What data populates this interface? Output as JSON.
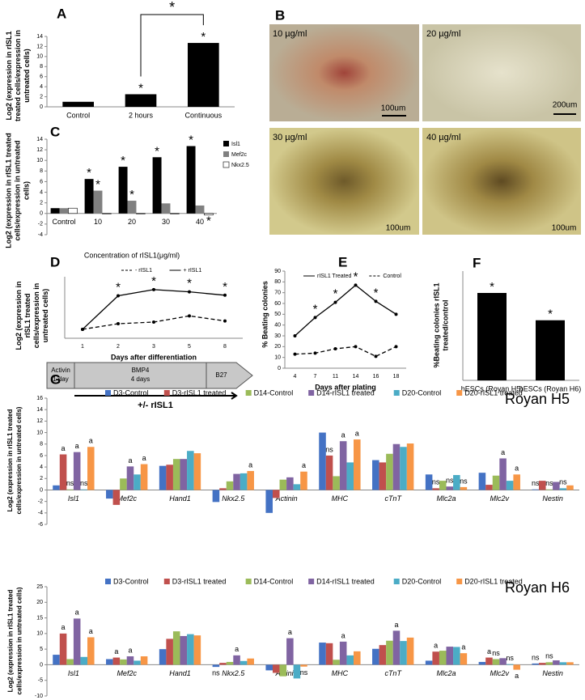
{
  "chart_data": [
    {
      "type": "bar",
      "panel": "A",
      "y_label": "Log2 (expression in rISL1 treated cells/expression in untreated cells)",
      "categories": [
        "Control",
        "2 hours",
        "Continuous"
      ],
      "values": [
        1,
        2.5,
        12.7
      ],
      "color": "#000000",
      "significance": [
        null,
        "*",
        "*"
      ],
      "bracket": {
        "between": [
          1,
          2
        ],
        "label": "*"
      },
      "ylim": [
        0,
        14
      ],
      "yticks": [
        0,
        2,
        4,
        6,
        8,
        10,
        12,
        14
      ]
    },
    {
      "type": "bar",
      "panel": "C",
      "y_label": "Log2 (expression in rISL1 treated cells/expression in untreated cells)",
      "x_label": "Concentration of rISL1(μg/ml)",
      "legend": "top-right",
      "categories": [
        "Control",
        "10",
        "20",
        "30",
        "40"
      ],
      "series": [
        {
          "name": "Isl1",
          "color": "#000000",
          "values": [
            1,
            6.5,
            8.8,
            10.6,
            12.7
          ],
          "significance": [
            null,
            "*",
            "*",
            "*",
            "*"
          ]
        },
        {
          "name": "Mef2c",
          "color": "#808080",
          "values": [
            1,
            4.3,
            2.4,
            1.9,
            1.5
          ],
          "significance": [
            null,
            "*",
            "*",
            null,
            null
          ]
        },
        {
          "name": "Nkx2.5",
          "color": "#ffffff",
          "values": [
            1,
            0,
            0,
            0,
            -0.3
          ],
          "significance": [
            null,
            null,
            null,
            null,
            "*"
          ]
        }
      ],
      "ylim": [
        -4,
        14
      ],
      "yticks": [
        -4,
        -2,
        0,
        2,
        4,
        6,
        8,
        10,
        12,
        14
      ]
    },
    {
      "type": "line",
      "panel": "D",
      "y_label": "Log2 (expression in rISL1 treated cells/expression in untreated cells)",
      "x_label": "Days after differentiation",
      "legend": "top",
      "categories": [
        "1",
        "2",
        "3",
        "5",
        "8"
      ],
      "series": [
        {
          "name": "- rISL1",
          "color": "#000000",
          "dash": true,
          "values": [
            1.6,
            2.6,
            2.9,
            4.0,
            3.1
          ],
          "significance": [
            null,
            null,
            null,
            null,
            null
          ]
        },
        {
          "name": "+ rISL1",
          "color": "#000000",
          "dash": false,
          "values": [
            1.6,
            7.6,
            8.7,
            8.3,
            7.7
          ],
          "significance": [
            null,
            "*",
            "*",
            "*",
            "*"
          ]
        }
      ],
      "ylim": [
        0,
        11
      ],
      "stages": [
        {
          "label": "Activin",
          "duration": "1 day"
        },
        {
          "label": "BMP4",
          "duration": "4 days"
        },
        {
          "label": "B27"
        }
      ],
      "arrow_label": "+/- rISL1"
    },
    {
      "type": "line",
      "panel": "E",
      "y_label": "% Beating colonies",
      "x_label": "Days after plating",
      "legend": "top",
      "categories": [
        "4",
        "7",
        "11",
        "14",
        "16",
        "18"
      ],
      "series": [
        {
          "name": "rISL1 Treated",
          "color": "#000000",
          "dash": false,
          "values": [
            30,
            47,
            61,
            77,
            62,
            50
          ],
          "significance": [
            null,
            "*",
            "*",
            "*",
            "*",
            null
          ]
        },
        {
          "name": "Control",
          "color": "#000000",
          "dash": true,
          "values": [
            13,
            14,
            18,
            20,
            11,
            20
          ],
          "significance": [
            null,
            null,
            null,
            null,
            null,
            null
          ]
        }
      ],
      "ylim": [
        0,
        90
      ],
      "yticks": [
        0,
        10,
        20,
        30,
        40,
        50,
        60,
        70,
        80,
        90
      ]
    },
    {
      "type": "bar",
      "panel": "F",
      "y_label": "%Beating colonies rISL1 treated/control",
      "categories": [
        "hESCs (Royan H5)",
        "hESCs (Royan H6)"
      ],
      "values": [
        3.2,
        2.2
      ],
      "color": "#000000",
      "significance": [
        "*",
        "*"
      ],
      "ylim": [
        0,
        4
      ]
    },
    {
      "type": "bar",
      "panel": "G",
      "title": "Royan H5",
      "category_style": "italic",
      "legend": "top",
      "y_label": "Log2 (expression in rISL1 treated cells/expression in untreated cells)",
      "categories": [
        "Isl1",
        "Mef2c",
        "Hand1",
        "Nkx2.5",
        "Actinin",
        "MHC",
        "cTnT",
        "Mlc2a",
        "Mlc2v",
        "Nestin"
      ],
      "series": [
        {
          "name": "D3-Control",
          "color": "#4472c4",
          "values": [
            0.8,
            -1.5,
            4.2,
            -2.1,
            -4.0,
            10,
            5.2,
            2.7,
            3.0,
            0.1
          ],
          "significance": [
            null,
            null,
            null,
            null,
            null,
            null,
            null,
            null,
            null,
            "ns"
          ]
        },
        {
          "name": "D3-rISL1 treated",
          "color": "#c0504d",
          "values": [
            6.2,
            -2.6,
            4.4,
            0.3,
            -1.4,
            6,
            4.8,
            0.3,
            0.9,
            1.6
          ],
          "significance": [
            "a",
            null,
            null,
            null,
            null,
            "ns",
            null,
            "ns",
            null,
            null
          ]
        },
        {
          "name": "D14-Control",
          "color": "#9bbb59",
          "values": [
            0.1,
            2.0,
            5.4,
            1.5,
            1.8,
            2.4,
            6.3,
            1.6,
            2.5,
            0.1
          ],
          "significance": [
            "ns",
            null,
            null,
            null,
            null,
            null,
            null,
            null,
            null,
            "ns"
          ]
        },
        {
          "name": "D14-rISL1 treated",
          "color": "#8064a2",
          "values": [
            6.6,
            4.1,
            5.4,
            2.8,
            2.2,
            8.5,
            8.0,
            0.6,
            5.5,
            1.4
          ],
          "significance": [
            "a",
            "a",
            null,
            null,
            null,
            "a",
            null,
            "ns",
            "a",
            null
          ]
        },
        {
          "name": "D20-Control",
          "color": "#4bacc6",
          "values": [
            0.1,
            2.7,
            6.8,
            2.9,
            1.0,
            4.8,
            7.5,
            2.6,
            1.6,
            0.3
          ],
          "significance": [
            "ns",
            null,
            null,
            null,
            null,
            null,
            null,
            null,
            null,
            "ns"
          ]
        },
        {
          "name": "D20-rISL1 treated",
          "color": "#f79646",
          "values": [
            7.5,
            4.5,
            6.4,
            3.3,
            3.2,
            8.8,
            8.1,
            0.5,
            2.7,
            0.8
          ],
          "significance": [
            "a",
            "a",
            null,
            "a",
            "a",
            "a",
            null,
            "ns",
            "a",
            null
          ]
        }
      ],
      "ylim": [
        -6,
        16
      ],
      "yticks": [
        -6,
        -4,
        -2,
        0,
        2,
        4,
        6,
        8,
        10,
        12,
        14,
        16
      ]
    },
    {
      "type": "bar",
      "title": "Royan H6",
      "category_style": "italic",
      "legend": "top",
      "y_label": "Log2 (expression in rISL1 treated cells/expression in untreated cells)",
      "categories": [
        "Isl1",
        "Mef2c",
        "Hand1",
        "Nkx2.5",
        "Actinin",
        "MHC",
        "cTnT",
        "Mlc2a",
        "Mlc2v",
        "Nestin"
      ],
      "series": [
        {
          "name": "D3-Control",
          "color": "#4472c4",
          "values": [
            3.2,
            1.8,
            5,
            -0.7,
            -1.8,
            7.1,
            5.1,
            1.3,
            0.9,
            0.4
          ],
          "significance": [
            null,
            null,
            null,
            "ns",
            null,
            null,
            null,
            null,
            null,
            "ns"
          ]
        },
        {
          "name": "D3-rISL1 treated",
          "color": "#c0504d",
          "values": [
            10,
            2.3,
            8.3,
            0.6,
            -2.6,
            6.9,
            6.3,
            4.2,
            2.3,
            0.6
          ],
          "significance": [
            "a",
            "a",
            null,
            null,
            null,
            null,
            null,
            "a",
            "a",
            null
          ]
        },
        {
          "name": "D14-Control",
          "color": "#9bbb59",
          "values": [
            1.8,
            1.7,
            10.7,
            0.9,
            -3.7,
            1.6,
            7.7,
            4.5,
            1.8,
            0.8
          ],
          "significance": [
            null,
            null,
            null,
            null,
            null,
            null,
            null,
            null,
            "ns",
            "ns"
          ]
        },
        {
          "name": "D14-rISL1 treated",
          "color": "#8064a2",
          "values": [
            14.8,
            2.7,
            9.2,
            3.0,
            8.5,
            7.4,
            10.9,
            5.8,
            2.1,
            1.4
          ],
          "significance": [
            "a",
            "a",
            null,
            "a",
            "a",
            "a",
            "a",
            null,
            null,
            null
          ]
        },
        {
          "name": "D20-Control",
          "color": "#4bacc6",
          "values": [
            2.5,
            1.3,
            9.8,
            1.2,
            -4.4,
            3.0,
            7.6,
            5.7,
            0.2,
            0.8
          ],
          "significance": [
            null,
            null,
            null,
            null,
            null,
            null,
            null,
            null,
            "ns",
            null
          ]
        },
        {
          "name": "D20-rISL1 treated",
          "color": "#f79646",
          "values": [
            8.8,
            2.7,
            9.4,
            2.0,
            -0.6,
            4.3,
            8.7,
            3.7,
            -1.6,
            0.8
          ],
          "significance": [
            "a",
            null,
            null,
            null,
            "ns",
            null,
            null,
            "a",
            "a",
            null
          ]
        }
      ],
      "ylim": [
        -10,
        25
      ],
      "yticks": [
        -10,
        -5,
        0,
        5,
        10,
        15,
        20,
        25
      ]
    }
  ],
  "micrographs": {
    "panel": "B",
    "images": [
      {
        "label": "10 µg/ml",
        "scale_bar": "100um"
      },
      {
        "label": "20 µg/ml",
        "scale_bar": "200um"
      },
      {
        "label": "30 µg/ml",
        "scale_bar": "100um"
      },
      {
        "label": "40 µg/ml",
        "scale_bar": "100um"
      }
    ]
  }
}
